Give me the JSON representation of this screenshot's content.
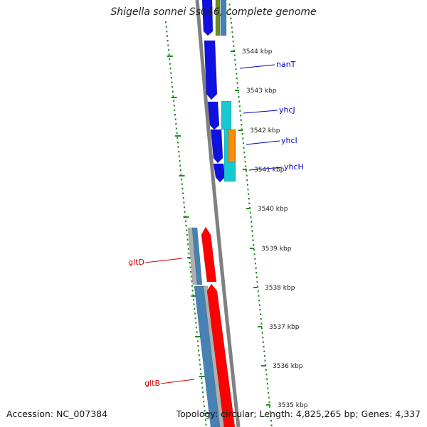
{
  "title": "Shigella sonnei Ss046, complete genome",
  "footer": {
    "accession": "Accession: NC_007384",
    "stats": "Topology: circular; Length: 4,825,265 bp; Genes: 4,337"
  },
  "scale_labels": [
    "3544 kbp",
    "3543 kbp",
    "3542 kbp",
    "3541 kbp",
    "3540 kbp",
    "3539 kbp",
    "3538 kbp",
    "3537 kbp",
    "3536 kbp",
    "3535 kbp"
  ],
  "gene_labels": {
    "nanT": "nanT",
    "yhcJ": "yhcJ",
    "yhcI": "yhcI",
    "yhcH": "yhcH",
    "gltD": "gltD",
    "gltB": "gltB"
  },
  "colors": {
    "backbone": "#808080",
    "reverse_gene": "#1010e0",
    "forward_gene": "#ff0000",
    "cyan_feature": "#18c8d0",
    "steel_feature": "#4682b4",
    "grey_feature": "#b0b0b0",
    "orange_feature": "#ff8c00",
    "olive_feature": "#6b8e23",
    "gc_skew": "#228b22",
    "label_reverse": "#0000cc",
    "label_forward": "#cc0000"
  }
}
